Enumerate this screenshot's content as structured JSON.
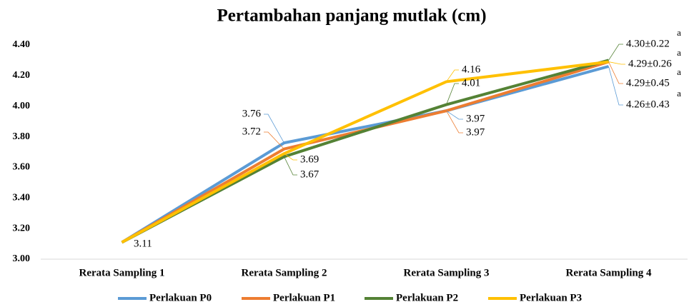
{
  "chart_data": {
    "type": "line",
    "title": "Pertambahan panjang mutlak (cm)",
    "categories": [
      "Rerata Sampling 1",
      "Rerata Sampling 2",
      "Rerata Sampling 3",
      "Rerata Sampling 4"
    ],
    "ylim": [
      3.0,
      4.4
    ],
    "yticks": [
      {
        "value": 3.0,
        "label": "3.00"
      },
      {
        "value": 3.2,
        "label": "3.20"
      },
      {
        "value": 3.4,
        "label": "3.40"
      },
      {
        "value": 3.6,
        "label": "3.60"
      },
      {
        "value": 3.8,
        "label": "3.80"
      },
      {
        "value": 4.0,
        "label": "4.00"
      },
      {
        "value": 4.2,
        "label": "4.20"
      },
      {
        "value": 4.4,
        "label": "4.40"
      }
    ],
    "grid": false,
    "legend": "bottom",
    "series": [
      {
        "name": "Perlakuan P0",
        "color": "#5b9bd5",
        "values": [
          3.11,
          3.76,
          3.97,
          4.26
        ],
        "value_labels": [
          null,
          "3.76",
          "3.97",
          "4.26±0.43"
        ],
        "annotation": "a"
      },
      {
        "name": "Perlakuan P1",
        "color": "#ed7d31",
        "values": [
          3.11,
          3.72,
          3.97,
          4.29
        ],
        "value_labels": [
          null,
          "3.72",
          "3.97",
          "4.29±0.45"
        ],
        "annotation": "a"
      },
      {
        "name": "Perlakuan P2",
        "color": "#548235",
        "values": [
          3.11,
          3.67,
          4.01,
          4.3
        ],
        "value_labels": [
          null,
          "3.67",
          "4.01",
          "4.30±0.22"
        ],
        "annotation": "a"
      },
      {
        "name": "Perlakuan P3",
        "color": "#ffc000",
        "values": [
          3.11,
          3.69,
          4.16,
          4.29
        ],
        "value_labels": [
          "3.11",
          "3.69",
          "4.16",
          "4.29±0.26"
        ],
        "annotation": "a"
      }
    ]
  }
}
